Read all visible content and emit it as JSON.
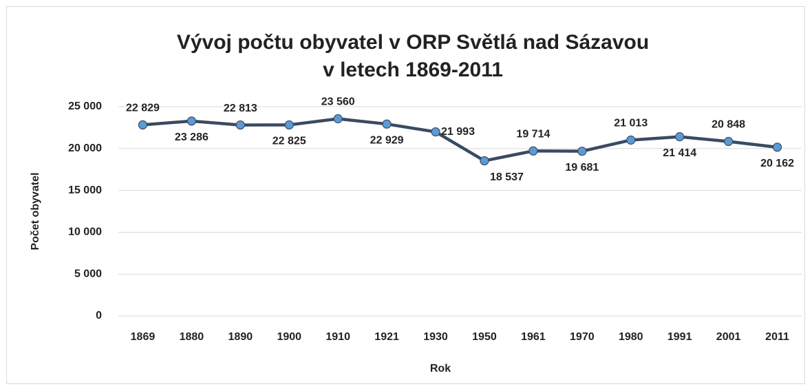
{
  "chart_data": {
    "type": "line",
    "title": [
      "Vývoj počtu obyvatel v ORP Světlá nad Sázavou",
      "v letech 1869-2011"
    ],
    "x_label": "Rok",
    "y_label": "Počet obyvatel",
    "categories": [
      "1869",
      "1880",
      "1890",
      "1900",
      "1910",
      "1921",
      "1930",
      "1950",
      "1961",
      "1970",
      "1980",
      "1991",
      "2001",
      "2011"
    ],
    "values": [
      22829,
      23286,
      22813,
      22825,
      23560,
      22929,
      21993,
      18537,
      19714,
      19681,
      21013,
      21414,
      20848,
      20162
    ],
    "value_labels": [
      "22 829",
      "23 286",
      "22 813",
      "22 825",
      "23 560",
      "22 929",
      "21 993",
      "18 537",
      "19 714",
      "19 681",
      "21 013",
      "21 414",
      "20 848",
      "20 162"
    ],
    "color": "#3b4a63",
    "marker_color": "#5b9bd5",
    "ylim": [
      0,
      25000
    ],
    "yticks": [
      {
        "value": 0,
        "label": "0"
      },
      {
        "value": 5000,
        "label": "5 000"
      },
      {
        "value": 10000,
        "label": "10 000"
      },
      {
        "value": 15000,
        "label": "15 000"
      },
      {
        "value": 20000,
        "label": "20 000"
      },
      {
        "value": 25000,
        "label": "25 000"
      }
    ],
    "grid": true
  }
}
